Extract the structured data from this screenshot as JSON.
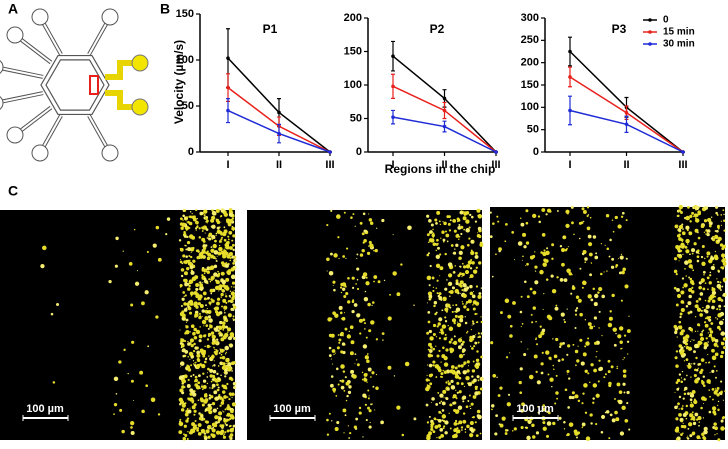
{
  "figure": {
    "panel_labels": [
      "A",
      "B",
      "C"
    ],
    "y_label": "Velocity (µm/s)",
    "x_label": "Regions in the chip",
    "scale_bars": [
      "100 µm",
      "100 µm",
      "100 µm"
    ]
  },
  "chart_data": [
    {
      "type": "line",
      "title": "P1",
      "categories": [
        "I",
        "II",
        "III"
      ],
      "ylim": [
        0,
        150
      ],
      "yticks": [
        0,
        50,
        100,
        150
      ],
      "series": [
        {
          "color": "#000000",
          "values": [
            102,
            43,
            0
          ],
          "errors": [
            32,
            15,
            0
          ]
        },
        {
          "color": "#e8201c",
          "values": [
            70,
            28,
            0
          ],
          "errors": [
            15,
            10,
            0
          ]
        },
        {
          "color": "#1f2bd6",
          "values": [
            45,
            20,
            0
          ],
          "errors": [
            13,
            10,
            0
          ]
        }
      ]
    },
    {
      "type": "line",
      "title": "P2",
      "categories": [
        "I",
        "II",
        "III"
      ],
      "ylim": [
        0,
        200
      ],
      "yticks": [
        0,
        50,
        100,
        150,
        200
      ],
      "series": [
        {
          "color": "#000000",
          "values": [
            143,
            80,
            0
          ],
          "errors": [
            22,
            13,
            0
          ]
        },
        {
          "color": "#e8201c",
          "values": [
            98,
            62,
            0
          ],
          "errors": [
            18,
            12,
            0
          ]
        },
        {
          "color": "#1f2bd6",
          "values": [
            52,
            38,
            0
          ],
          "errors": [
            10,
            8,
            0
          ]
        }
      ]
    },
    {
      "type": "line",
      "title": "P3",
      "categories": [
        "I",
        "II",
        "III"
      ],
      "ylim": [
        0,
        300
      ],
      "yticks": [
        0,
        50,
        100,
        150,
        200,
        250,
        300
      ],
      "legend": "upper right",
      "series": [
        {
          "name": "0",
          "color": "#000000",
          "values": [
            225,
            100,
            0
          ],
          "errors": [
            32,
            22,
            0
          ]
        },
        {
          "name": "15 min",
          "color": "#e8201c",
          "values": [
            168,
            88,
            0
          ],
          "errors": [
            22,
            15,
            0
          ]
        },
        {
          "name": "30 min",
          "color": "#1f2bd6",
          "values": [
            93,
            62,
            0
          ],
          "errors": [
            32,
            18,
            0
          ]
        }
      ]
    }
  ]
}
